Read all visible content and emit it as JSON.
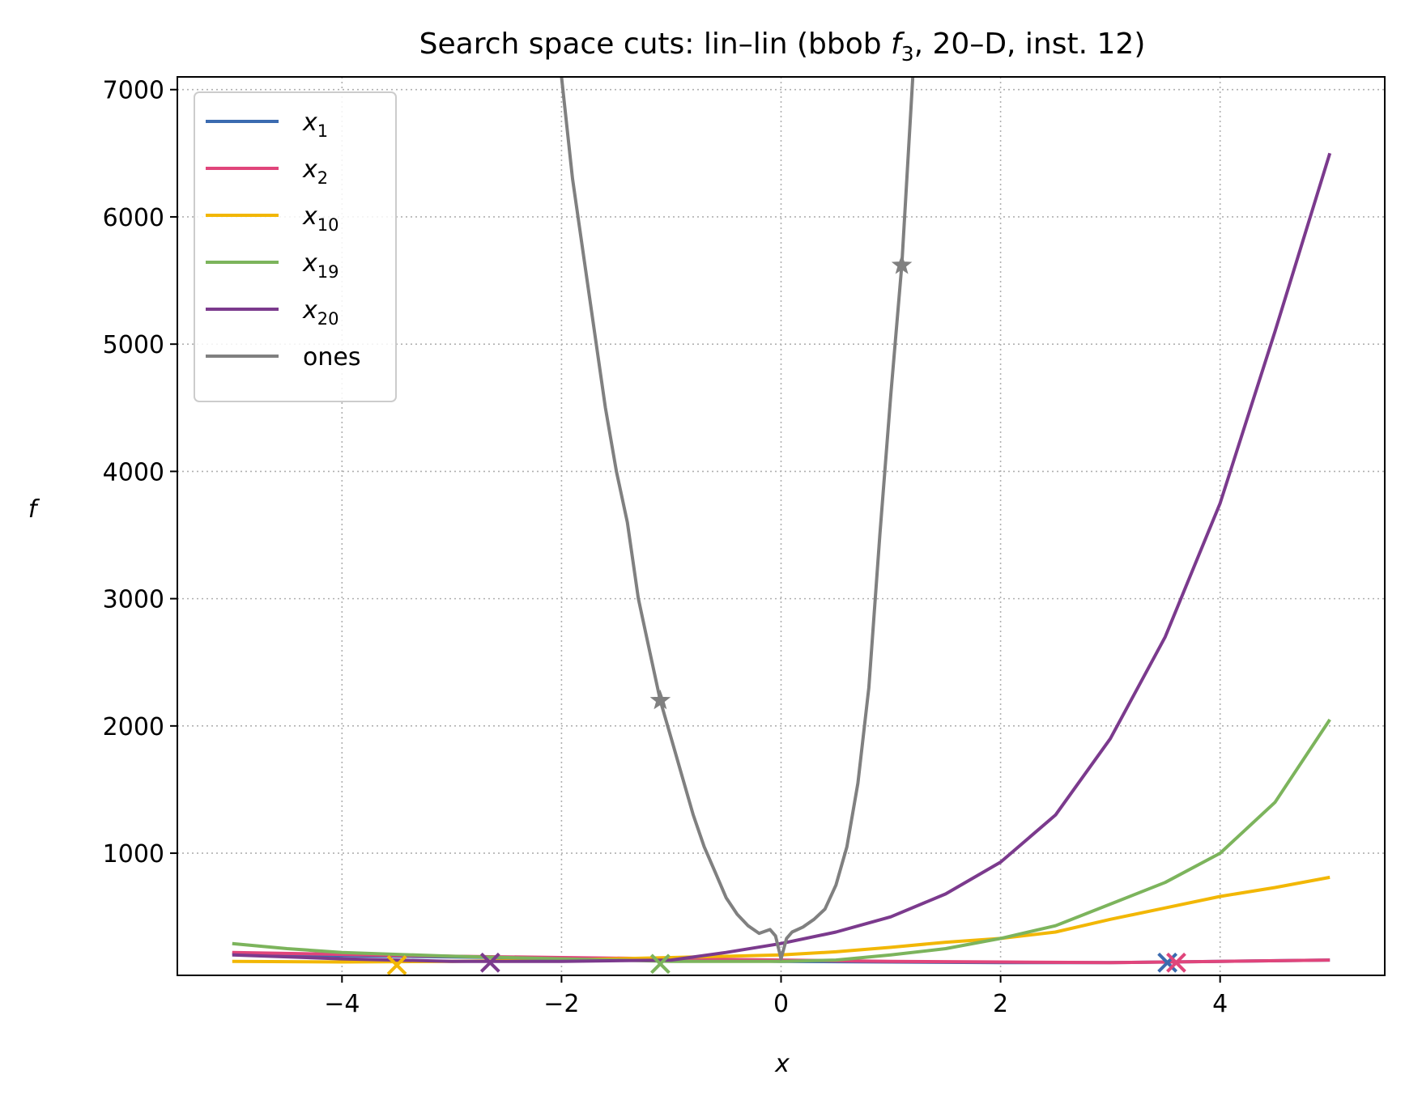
{
  "chart_data": {
    "type": "line",
    "title": "Search space cuts: lin–lin (bbob f₃, 20–D, inst. 12)",
    "title_parts": {
      "before": "Search space cuts: lin–lin (bbob ",
      "f": "f",
      "sub": "3",
      "after": ", 20–D, inst. 12)"
    },
    "xlabel": "x",
    "ylabel": "f",
    "xlim": [
      -5.5,
      5.5
    ],
    "ylim": [
      40,
      7100
    ],
    "xticks": [
      -4,
      -2,
      0,
      2,
      4
    ],
    "xtick_labels": [
      "−4",
      "−2",
      "0",
      "2",
      "4"
    ],
    "yticks": [
      1000,
      2000,
      3000,
      4000,
      5000,
      6000,
      7000
    ],
    "ytick_labels": [
      "1000",
      "2000",
      "3000",
      "4000",
      "5000",
      "6000",
      "7000"
    ],
    "grid": true,
    "legend_position": "upper-left",
    "series": [
      {
        "name": "x1",
        "base": "x",
        "sub": "1",
        "color": "#3b6bb0",
        "x": [
          -5,
          -4,
          -3,
          -2,
          -1,
          0,
          1,
          2,
          3,
          4,
          5
        ],
        "y": [
          210,
          195,
          185,
          175,
          165,
          150,
          145,
          140,
          140,
          150,
          160
        ],
        "markers": [
          {
            "x": 3.52,
            "y": 140,
            "symbol": "x"
          }
        ]
      },
      {
        "name": "x2",
        "base": "x",
        "sub": "2",
        "color": "#e0457b",
        "x": [
          -5,
          -4,
          -3,
          -2,
          -1,
          0,
          1,
          2,
          3,
          4,
          5
        ],
        "y": [
          220,
          205,
          190,
          180,
          170,
          160,
          150,
          145,
          140,
          150,
          160
        ],
        "markers": [
          {
            "x": 3.6,
            "y": 140,
            "symbol": "x"
          }
        ]
      },
      {
        "name": "x10",
        "base": "x",
        "sub": "10",
        "color": "#f2b705",
        "x": [
          -5,
          -4,
          -3,
          -2,
          -1,
          0,
          0.5,
          1,
          1.5,
          2,
          2.5,
          3,
          3.5,
          4,
          4.5,
          5
        ],
        "y": [
          150,
          145,
          150,
          160,
          180,
          200,
          225,
          260,
          300,
          330,
          380,
          480,
          570,
          660,
          730,
          810
        ],
        "markers": [
          {
            "x": -3.5,
            "y": 120,
            "symbol": "x"
          }
        ]
      },
      {
        "name": "x19",
        "base": "x",
        "sub": "19",
        "color": "#7cb45c",
        "x": [
          -5,
          -4.5,
          -4,
          -3,
          -2,
          -1,
          0,
          0.5,
          1,
          1.5,
          2,
          2.5,
          3,
          3.5,
          4,
          4.5,
          5
        ],
        "y": [
          290,
          250,
          220,
          190,
          170,
          150,
          150,
          160,
          200,
          250,
          330,
          430,
          600,
          770,
          1000,
          1400,
          2050
        ],
        "markers": [
          {
            "x": -1.1,
            "y": 130,
            "symbol": "x"
          }
        ]
      },
      {
        "name": "x20",
        "base": "x",
        "sub": "20",
        "color": "#7b3a8d",
        "x": [
          -5,
          -4,
          -3,
          -2,
          -1,
          -0.5,
          0,
          0.5,
          1,
          1.5,
          2,
          2.5,
          3,
          3.5,
          4,
          4.5,
          5
        ],
        "y": [
          200,
          170,
          150,
          150,
          160,
          220,
          290,
          380,
          500,
          680,
          930,
          1300,
          1900,
          2700,
          3750,
          5100,
          6500
        ],
        "markers": [
          {
            "x": -2.65,
            "y": 140,
            "symbol": "x"
          }
        ]
      },
      {
        "name": "ones",
        "base": "ones",
        "sub": "",
        "color": "#808080",
        "x": [
          -2.0,
          -1.9,
          -1.75,
          -1.6,
          -1.5,
          -1.4,
          -1.3,
          -1.2,
          -1.1,
          -1.0,
          -0.9,
          -0.8,
          -0.7,
          -0.6,
          -0.5,
          -0.4,
          -0.3,
          -0.2,
          -0.1,
          -0.05,
          0.0,
          0.05,
          0.1,
          0.2,
          0.3,
          0.4,
          0.5,
          0.6,
          0.7,
          0.8,
          0.9,
          1.0,
          1.1,
          1.2
        ],
        "y": [
          7100,
          6300,
          5400,
          4500,
          4000,
          3600,
          3000,
          2600,
          2200,
          1900,
          1600,
          1300,
          1050,
          850,
          650,
          520,
          430,
          370,
          400,
          350,
          170,
          330,
          380,
          420,
          480,
          560,
          750,
          1050,
          1550,
          2300,
          3500,
          4600,
          5620,
          7100
        ],
        "markers": [
          {
            "x": -1.1,
            "y": 2200,
            "symbol": "star"
          },
          {
            "x": 1.1,
            "y": 5620,
            "symbol": "star"
          }
        ]
      }
    ]
  }
}
